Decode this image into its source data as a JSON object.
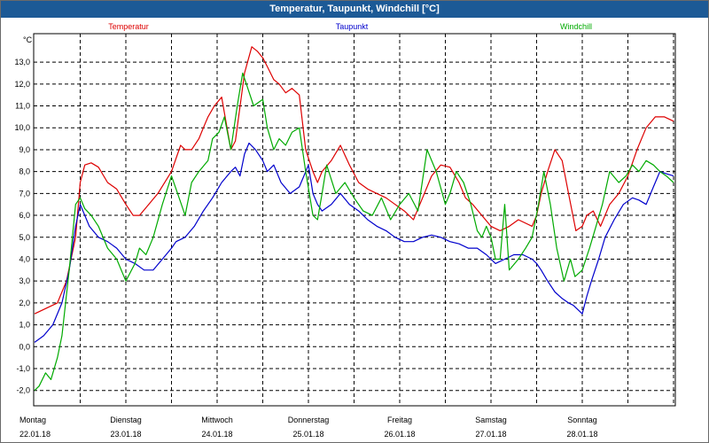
{
  "window": {
    "title": "Temperatur, Taupunkt, Windchill [°C]"
  },
  "chart_data": {
    "type": "line",
    "title": "Temperatur, Taupunkt, Windchill [°C]",
    "ylabel": "°C",
    "ylim": [
      -2.7,
      14.3
    ],
    "yticks": [
      "-2,0",
      "-1,0",
      "0,0",
      "1,0",
      "2,0",
      "3,0",
      "4,0",
      "5,0",
      "6,0",
      "7,0",
      "8,0",
      "9,0",
      "10,0",
      "11,0",
      "12,0",
      "13,0"
    ],
    "xlim": [
      0,
      7
    ],
    "xticks": [
      {
        "day": "Montag",
        "date": "22.01.18",
        "x": 0
      },
      {
        "day": "Dienstag",
        "date": "23.01.18",
        "x": 1
      },
      {
        "day": "Mittwoch",
        "date": "24.01.18",
        "x": 2
      },
      {
        "day": "Donnerstag",
        "date": "25.01.18",
        "x": 3
      },
      {
        "day": "Freitag",
        "date": "26.01.18",
        "x": 4
      },
      {
        "day": "Samstag",
        "date": "27.01.18",
        "x": 5
      },
      {
        "day": "Sonntag",
        "date": "28.01.18",
        "x": 6
      }
    ],
    "grid": true,
    "series": [
      {
        "name": "Temperatur",
        "color": "#dd0000",
        "x": [
          0.0,
          0.15,
          0.25,
          0.35,
          0.45,
          0.5,
          0.55,
          0.62,
          0.7,
          0.8,
          0.9,
          1.0,
          1.08,
          1.15,
          1.25,
          1.35,
          1.5,
          1.6,
          1.65,
          1.72,
          1.8,
          1.85,
          1.9,
          1.97,
          2.05,
          2.15,
          2.2,
          2.3,
          2.38,
          2.44,
          2.5,
          2.55,
          2.62,
          2.68,
          2.75,
          2.82,
          2.9,
          2.97,
          3.05,
          3.1,
          3.15,
          3.25,
          3.35,
          3.45,
          3.55,
          3.65,
          3.75,
          3.85,
          3.95,
          4.05,
          4.15,
          4.25,
          4.35,
          4.45,
          4.55,
          4.65,
          4.72,
          4.8,
          4.9,
          5.0,
          5.1,
          5.2,
          5.3,
          5.45,
          5.5,
          5.55,
          5.62,
          5.7,
          5.78,
          5.85,
          5.93,
          6.0,
          6.05,
          6.12,
          6.2,
          6.3,
          6.4,
          6.5,
          6.6,
          6.7,
          6.8,
          6.9,
          7.0
        ],
        "y": [
          1.5,
          1.8,
          2.0,
          3.0,
          5.0,
          7.5,
          8.3,
          8.4,
          8.2,
          7.5,
          7.2,
          6.5,
          6.0,
          6.0,
          6.5,
          7.0,
          8.0,
          9.2,
          9.0,
          9.0,
          9.5,
          10.0,
          10.5,
          11.0,
          11.4,
          9.0,
          9.4,
          12.5,
          13.7,
          13.5,
          13.2,
          12.8,
          12.2,
          12.0,
          11.6,
          11.8,
          11.5,
          9.0,
          8.0,
          7.5,
          8.0,
          8.5,
          9.2,
          8.3,
          7.5,
          7.2,
          7.0,
          6.8,
          6.5,
          6.2,
          5.8,
          6.8,
          7.8,
          8.3,
          8.2,
          7.5,
          6.8,
          6.5,
          6.0,
          5.5,
          5.3,
          5.5,
          5.8,
          5.5,
          6.0,
          7.0,
          8.0,
          9.0,
          8.5,
          7.0,
          5.3,
          5.5,
          6.0,
          6.2,
          5.5,
          6.5,
          7.0,
          7.8,
          9.0,
          10.0,
          10.5,
          10.5,
          10.3
        ]
      },
      {
        "name": "Taupunkt",
        "color": "#0000cc",
        "x": [
          0.0,
          0.1,
          0.2,
          0.3,
          0.38,
          0.45,
          0.5,
          0.55,
          0.6,
          0.7,
          0.8,
          0.9,
          1.0,
          1.1,
          1.2,
          1.3,
          1.4,
          1.5,
          1.55,
          1.65,
          1.75,
          1.85,
          1.95,
          2.05,
          2.15,
          2.2,
          2.25,
          2.3,
          2.35,
          2.42,
          2.5,
          2.55,
          2.62,
          2.7,
          2.8,
          2.9,
          2.95,
          3.0,
          3.05,
          3.1,
          3.15,
          3.25,
          3.35,
          3.45,
          3.55,
          3.65,
          3.75,
          3.85,
          3.95,
          4.05,
          4.15,
          4.25,
          4.35,
          4.45,
          4.55,
          4.65,
          4.75,
          4.85,
          4.95,
          5.0,
          5.05,
          5.15,
          5.25,
          5.35,
          5.45,
          5.5,
          5.55,
          5.62,
          5.7,
          5.78,
          5.85,
          5.9,
          5.95,
          6.0,
          6.05,
          6.1,
          6.18,
          6.25,
          6.35,
          6.45,
          6.55,
          6.62,
          6.7,
          6.78,
          6.85,
          6.92,
          7.0
        ],
        "y": [
          0.2,
          0.5,
          1.0,
          2.0,
          3.5,
          5.5,
          6.5,
          6.0,
          5.5,
          5.0,
          4.8,
          4.5,
          4.0,
          3.8,
          3.5,
          3.5,
          4.0,
          4.5,
          4.8,
          5.0,
          5.5,
          6.2,
          6.8,
          7.5,
          8.0,
          8.2,
          7.8,
          8.8,
          9.3,
          9.0,
          8.5,
          8.0,
          8.3,
          7.5,
          7.0,
          7.3,
          7.8,
          8.3,
          7.0,
          6.5,
          6.2,
          6.5,
          7.0,
          6.5,
          6.2,
          5.8,
          5.5,
          5.3,
          5.0,
          4.8,
          4.8,
          5.0,
          5.1,
          5.0,
          4.8,
          4.7,
          4.5,
          4.5,
          4.2,
          4.0,
          3.8,
          4.0,
          4.2,
          4.2,
          4.0,
          3.8,
          3.5,
          3.0,
          2.5,
          2.2,
          2.0,
          1.9,
          1.7,
          1.5,
          2.3,
          3.0,
          4.0,
          5.0,
          5.8,
          6.5,
          6.8,
          6.7,
          6.5,
          7.3,
          8.0,
          7.9,
          7.8
        ]
      },
      {
        "name": "Windchill",
        "color": "#00aa00",
        "x": [
          0.0,
          0.05,
          0.12,
          0.18,
          0.25,
          0.3,
          0.38,
          0.45,
          0.5,
          0.55,
          0.62,
          0.7,
          0.8,
          0.9,
          1.0,
          1.1,
          1.15,
          1.22,
          1.3,
          1.4,
          1.5,
          1.55,
          1.65,
          1.72,
          1.8,
          1.9,
          1.95,
          2.02,
          2.08,
          2.15,
          2.22,
          2.28,
          2.32,
          2.4,
          2.5,
          2.55,
          2.62,
          2.68,
          2.75,
          2.82,
          2.9,
          2.97,
          3.05,
          3.1,
          3.15,
          3.2,
          3.3,
          3.4,
          3.5,
          3.6,
          3.7,
          3.8,
          3.9,
          4.0,
          4.1,
          4.2,
          4.3,
          4.4,
          4.5,
          4.55,
          4.62,
          4.7,
          4.78,
          4.85,
          4.9,
          4.95,
          5.0,
          5.05,
          5.1,
          5.15,
          5.2,
          5.3,
          5.38,
          5.45,
          5.52,
          5.58,
          5.65,
          5.72,
          5.8,
          5.87,
          5.92,
          6.0,
          6.08,
          6.15,
          6.22,
          6.3,
          6.4,
          6.48,
          6.55,
          6.62,
          6.7,
          6.78,
          6.85,
          6.92,
          7.0
        ],
        "y": [
          -2.0,
          -1.8,
          -1.2,
          -1.5,
          -0.5,
          0.5,
          3.5,
          6.5,
          6.8,
          6.3,
          6.0,
          5.5,
          4.5,
          4.0,
          3.0,
          3.8,
          4.5,
          4.2,
          5.0,
          6.5,
          7.8,
          7.2,
          6.0,
          7.5,
          8.0,
          8.5,
          9.5,
          9.8,
          10.5,
          9.0,
          11.0,
          12.5,
          12.0,
          11.0,
          11.3,
          10.0,
          9.0,
          9.5,
          9.2,
          9.8,
          10.0,
          8.0,
          6.0,
          5.8,
          7.0,
          8.3,
          7.0,
          7.5,
          6.8,
          6.2,
          6.0,
          6.8,
          5.8,
          6.5,
          7.0,
          6.2,
          9.0,
          8.0,
          6.5,
          7.0,
          8.0,
          7.5,
          6.5,
          5.3,
          5.0,
          5.5,
          5.0,
          4.0,
          4.0,
          6.5,
          3.5,
          4.0,
          4.5,
          5.0,
          6.5,
          8.0,
          6.5,
          4.5,
          3.0,
          4.0,
          3.2,
          3.5,
          4.5,
          5.5,
          6.5,
          8.0,
          7.5,
          7.8,
          8.3,
          8.0,
          8.5,
          8.3,
          8.0,
          7.8,
          7.5
        ]
      }
    ]
  }
}
